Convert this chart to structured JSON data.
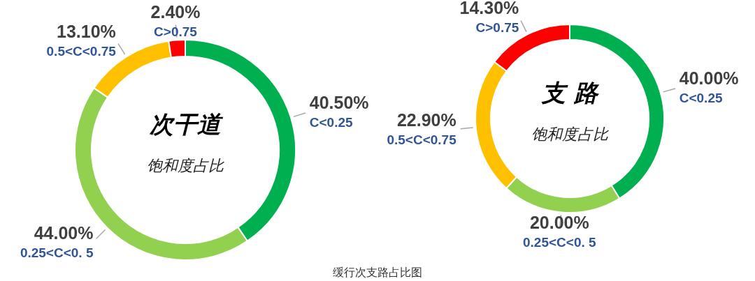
{
  "chart_data": [
    {
      "type": "donut",
      "title": "次干道",
      "subtitle": "饱和度占比",
      "categories": [
        "C<0.25",
        "0.25<C<0. 5",
        "0.5<C<0.75",
        "C>0.75"
      ],
      "values": [
        40.5,
        44.0,
        13.1,
        2.4
      ],
      "value_labels": [
        "40.50%",
        "44.00%",
        "13.10%",
        "2.40%"
      ],
      "colors": [
        "#00b050",
        "#92d050",
        "#ffc000",
        "#ff0000"
      ],
      "annotations": [
        "缓行次支路占比图"
      ]
    },
    {
      "type": "donut",
      "title": "支 路",
      "subtitle": "饱和度占比",
      "categories": [
        "C<0.25",
        "0.25<C<0. 5",
        "0.5<C<0.75",
        "C>0.75"
      ],
      "values": [
        40.0,
        20.0,
        22.9,
        14.3
      ],
      "value_labels": [
        "40.00%",
        "20.00%",
        "22.90%",
        "14.30%"
      ],
      "colors": [
        "#00b050",
        "#92d050",
        "#ffc000",
        "#ff0000"
      ]
    }
  ]
}
